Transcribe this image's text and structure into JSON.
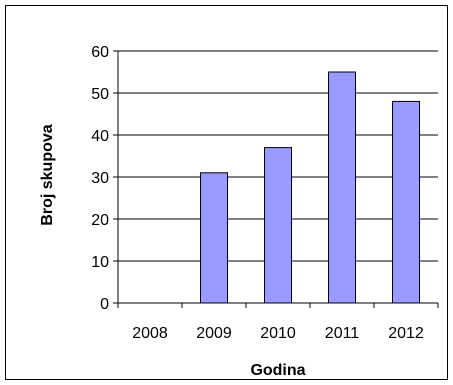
{
  "chart_data": {
    "type": "bar",
    "categories": [
      "2008",
      "2009",
      "2010",
      "2011",
      "2012"
    ],
    "values": [
      0,
      31,
      37,
      55,
      48
    ],
    "title": "",
    "xlabel": "Godina",
    "ylabel": "Broj skupova",
    "ylim": [
      0,
      60
    ],
    "yticks": [
      "0",
      "10",
      "20",
      "30",
      "40",
      "50",
      "60"
    ],
    "grid": true,
    "legend": "none",
    "colors": {
      "bar_fill": "#9999ff",
      "bar_stroke": "#000000",
      "grid": "#000000",
      "axis": "#000000",
      "background": "#ffffff",
      "frame": "#000000"
    }
  }
}
